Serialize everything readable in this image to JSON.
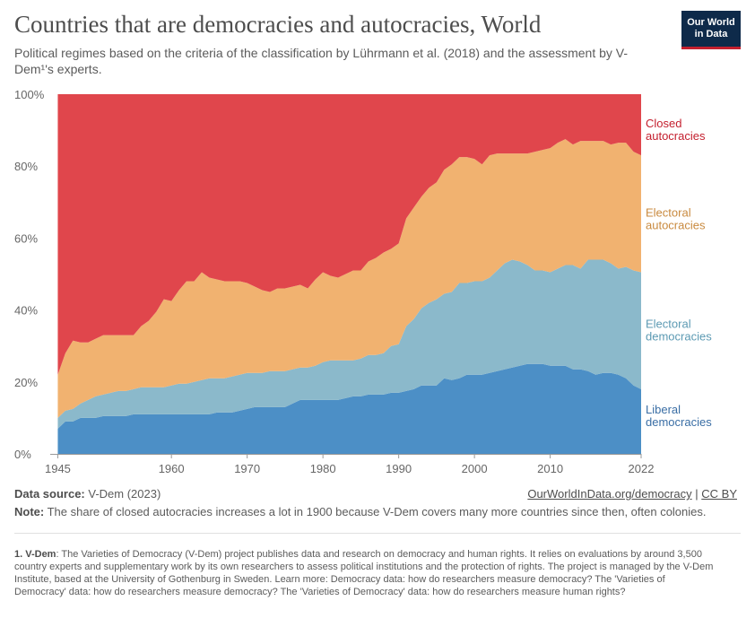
{
  "header": {
    "title": "Countries that are democracies and autocracies, World",
    "subtitle": "Political regimes based on the criteria of the classification by Lührmann et al. (2018) and the assessment by V-Dem¹'s experts."
  },
  "logo": {
    "line1": "Our World",
    "line2": "in Data"
  },
  "chart_data": {
    "type": "area",
    "stacked": true,
    "percent": true,
    "x": [
      1945,
      1946,
      1947,
      1948,
      1949,
      1950,
      1951,
      1952,
      1953,
      1954,
      1955,
      1956,
      1957,
      1958,
      1959,
      1960,
      1961,
      1962,
      1963,
      1964,
      1965,
      1966,
      1967,
      1968,
      1969,
      1970,
      1971,
      1972,
      1973,
      1974,
      1975,
      1976,
      1977,
      1978,
      1979,
      1980,
      1981,
      1982,
      1983,
      1984,
      1985,
      1986,
      1987,
      1988,
      1989,
      1990,
      1991,
      1992,
      1993,
      1994,
      1995,
      1996,
      1997,
      1998,
      1999,
      2000,
      2001,
      2002,
      2003,
      2004,
      2005,
      2006,
      2007,
      2008,
      2009,
      2010,
      2011,
      2012,
      2013,
      2014,
      2015,
      2016,
      2017,
      2018,
      2019,
      2020,
      2021,
      2022
    ],
    "xlim": [
      1944,
      2022
    ],
    "ylim": [
      0,
      100
    ],
    "y_ticks": [
      "0%",
      "20%",
      "40%",
      "60%",
      "80%",
      "100%"
    ],
    "y_tick_values": [
      0,
      20,
      40,
      60,
      80,
      100
    ],
    "x_ticks": [
      "1945",
      "1960",
      "1970",
      "1980",
      "1990",
      "2000",
      "2010",
      "2022"
    ],
    "x_tick_values": [
      1945,
      1960,
      1970,
      1980,
      1990,
      2000,
      2010,
      2022
    ],
    "grid": "horizontal dashed",
    "legend": "right, labels at series",
    "series": [
      {
        "name": "Liberal democracies",
        "color": "#4c8fc6",
        "label_color": "#3a6ea5",
        "values": [
          7,
          9,
          9,
          10,
          10,
          10,
          10.5,
          10.5,
          10.5,
          10.5,
          11,
          11,
          11,
          11,
          11,
          11,
          11,
          11,
          11,
          11,
          11,
          11.5,
          11.5,
          11.5,
          12,
          12.5,
          13,
          13,
          13,
          13,
          13,
          14,
          15,
          15,
          15,
          15,
          15,
          15,
          15.5,
          16,
          16,
          16.5,
          16.5,
          16.5,
          17,
          17,
          17.5,
          18,
          19,
          19,
          19,
          21,
          20.5,
          21,
          22,
          22,
          22,
          22.5,
          23,
          23.5,
          24,
          24.5,
          25,
          25,
          25,
          24.5,
          24.5,
          24.5,
          23.5,
          23.5,
          23,
          22,
          22.5,
          22.5,
          22,
          21,
          19,
          18
        ]
      },
      {
        "name": "Electoral democracies",
        "color": "#8bb9cb",
        "label_color": "#5c9ab3",
        "values": [
          3,
          3,
          3.5,
          4,
          5,
          6,
          6,
          6.5,
          7,
          7,
          7,
          7.5,
          7.5,
          7.5,
          7.5,
          8,
          8.5,
          8.5,
          9,
          9.5,
          10,
          9.5,
          9.5,
          10,
          10,
          10,
          9.5,
          9.5,
          10,
          10,
          10,
          9.5,
          9,
          9,
          9.5,
          10.5,
          11,
          11,
          10.5,
          10,
          10.5,
          11,
          11,
          11.5,
          13,
          13.5,
          18,
          19.5,
          21.5,
          23,
          24,
          23.5,
          24.5,
          26.5,
          25.5,
          26,
          26,
          26.5,
          28,
          29.5,
          30,
          29,
          27.5,
          26,
          26,
          26,
          27,
          28,
          29,
          28,
          31,
          32,
          31.5,
          30.5,
          29.5,
          31,
          32,
          32.5
        ]
      },
      {
        "name": "Electoral autocracies",
        "color": "#f1b270",
        "label_color": "#c98a3f",
        "values": [
          12,
          16,
          19,
          17,
          16,
          16,
          16.5,
          16,
          15.5,
          15.5,
          15,
          17,
          18.5,
          21,
          24.5,
          23.5,
          26,
          28.5,
          28,
          30,
          28,
          27.5,
          27,
          26.5,
          26,
          25,
          24,
          23,
          22,
          23,
          23,
          23,
          23,
          22,
          24,
          25,
          23.5,
          23,
          24,
          25,
          24.5,
          26,
          27,
          28,
          27,
          28,
          30,
          31,
          31,
          32,
          32.5,
          34.5,
          35.5,
          35,
          35,
          34,
          32.5,
          34,
          32.5,
          30.5,
          29.5,
          30,
          31,
          33,
          33.5,
          34.5,
          35,
          35,
          33.5,
          35.5,
          33,
          33,
          33,
          33,
          35,
          34.5,
          33,
          32.5
        ]
      },
      {
        "name": "Closed autocracies",
        "color": "#e0464c",
        "label_color": "#c4202f",
        "values": [
          78,
          72,
          68.5,
          69,
          69,
          68,
          67,
          67,
          67,
          67,
          67,
          64.5,
          63,
          60.5,
          57,
          57.5,
          54.5,
          52,
          52,
          49.5,
          51,
          51.5,
          52,
          52,
          52,
          52.5,
          53.5,
          54.5,
          55,
          54,
          54,
          53.5,
          53,
          54,
          51.5,
          49.5,
          50.5,
          51,
          50,
          49,
          49,
          46.5,
          45.5,
          44,
          43,
          41.5,
          34.5,
          31.5,
          28.5,
          26,
          24.5,
          21,
          19.5,
          17.5,
          17.5,
          18,
          19.5,
          17,
          16.5,
          16.5,
          16.5,
          16.5,
          16.5,
          16,
          15.5,
          15,
          13.5,
          12.5,
          14,
          13,
          13,
          13,
          13,
          14,
          13.5,
          13.5,
          16,
          17
        ]
      }
    ],
    "series_labels": [
      [
        "Closed",
        "autocracies"
      ],
      [
        "Electoral",
        "autocracies"
      ],
      [
        "Electoral",
        "democracies"
      ],
      [
        "Liberal",
        "democracies"
      ]
    ]
  },
  "footer": {
    "source_label": "Data source:",
    "source_value": "V-Dem (2023)",
    "link_text": "OurWorldInData.org/democracy",
    "separator": "|",
    "license": "CC BY",
    "note_label": "Note:",
    "note_text": "The share of closed autocracies increases a lot in 1900 because V-Dem covers many more countries since then, often colonies."
  },
  "footnote": {
    "label": "1. V-Dem",
    "text": ": The Varieties of Democracy (V-Dem) project publishes data and research on democracy and human rights. It relies on evaluations by around 3,500 country experts and supplementary work by its own researchers to assess political institutions and the protection of rights. The project is managed by the V-Dem Institute, based at the University of Gothenburg in Sweden. Learn more: Democracy data: how do researchers measure democracy? The 'Varieties of Democracy' data: how do researchers measure democracy? The 'Varieties of Democracy' data: how do researchers measure human rights?"
  }
}
